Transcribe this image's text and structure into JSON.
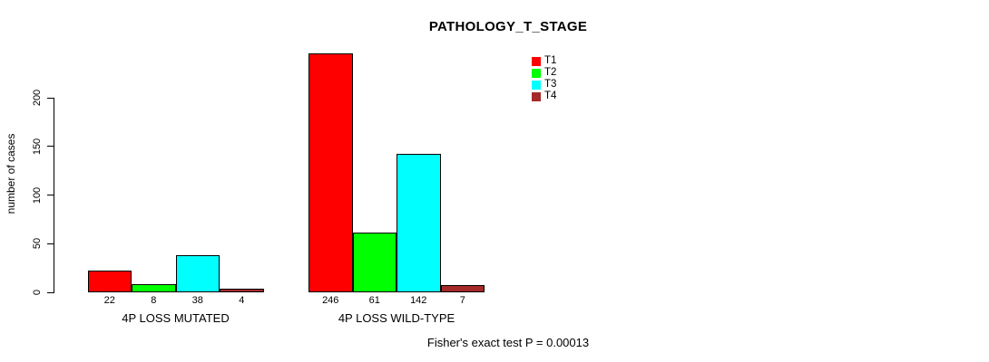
{
  "title": "PATHOLOGY_T_STAGE",
  "footer": "Fisher's exact test P = 0.00013",
  "chart_data": {
    "type": "bar",
    "title": "PATHOLOGY_T_STAGE",
    "xlabel": "",
    "ylabel": "number of cases",
    "ylim": [
      0,
      250
    ],
    "yticks": [
      0,
      50,
      100,
      150,
      200
    ],
    "grid": false,
    "legend_position": "top-right",
    "categories": [
      "4P LOSS MUTATED",
      "4P LOSS WILD-TYPE"
    ],
    "series": [
      {
        "name": "T1",
        "color": "#FF0000",
        "values": [
          22,
          246
        ]
      },
      {
        "name": "T2",
        "color": "#00FF00",
        "values": [
          8,
          61
        ]
      },
      {
        "name": "T3",
        "color": "#00FFFF",
        "values": [
          38,
          142
        ]
      },
      {
        "name": "T4",
        "color": "#A52A2A",
        "values": [
          4,
          7
        ]
      }
    ],
    "bar_value_labels": [
      [
        22,
        8,
        38,
        4
      ],
      [
        246,
        61,
        142,
        7
      ]
    ],
    "annotation": "Fisher's exact test P = 0.00013"
  }
}
